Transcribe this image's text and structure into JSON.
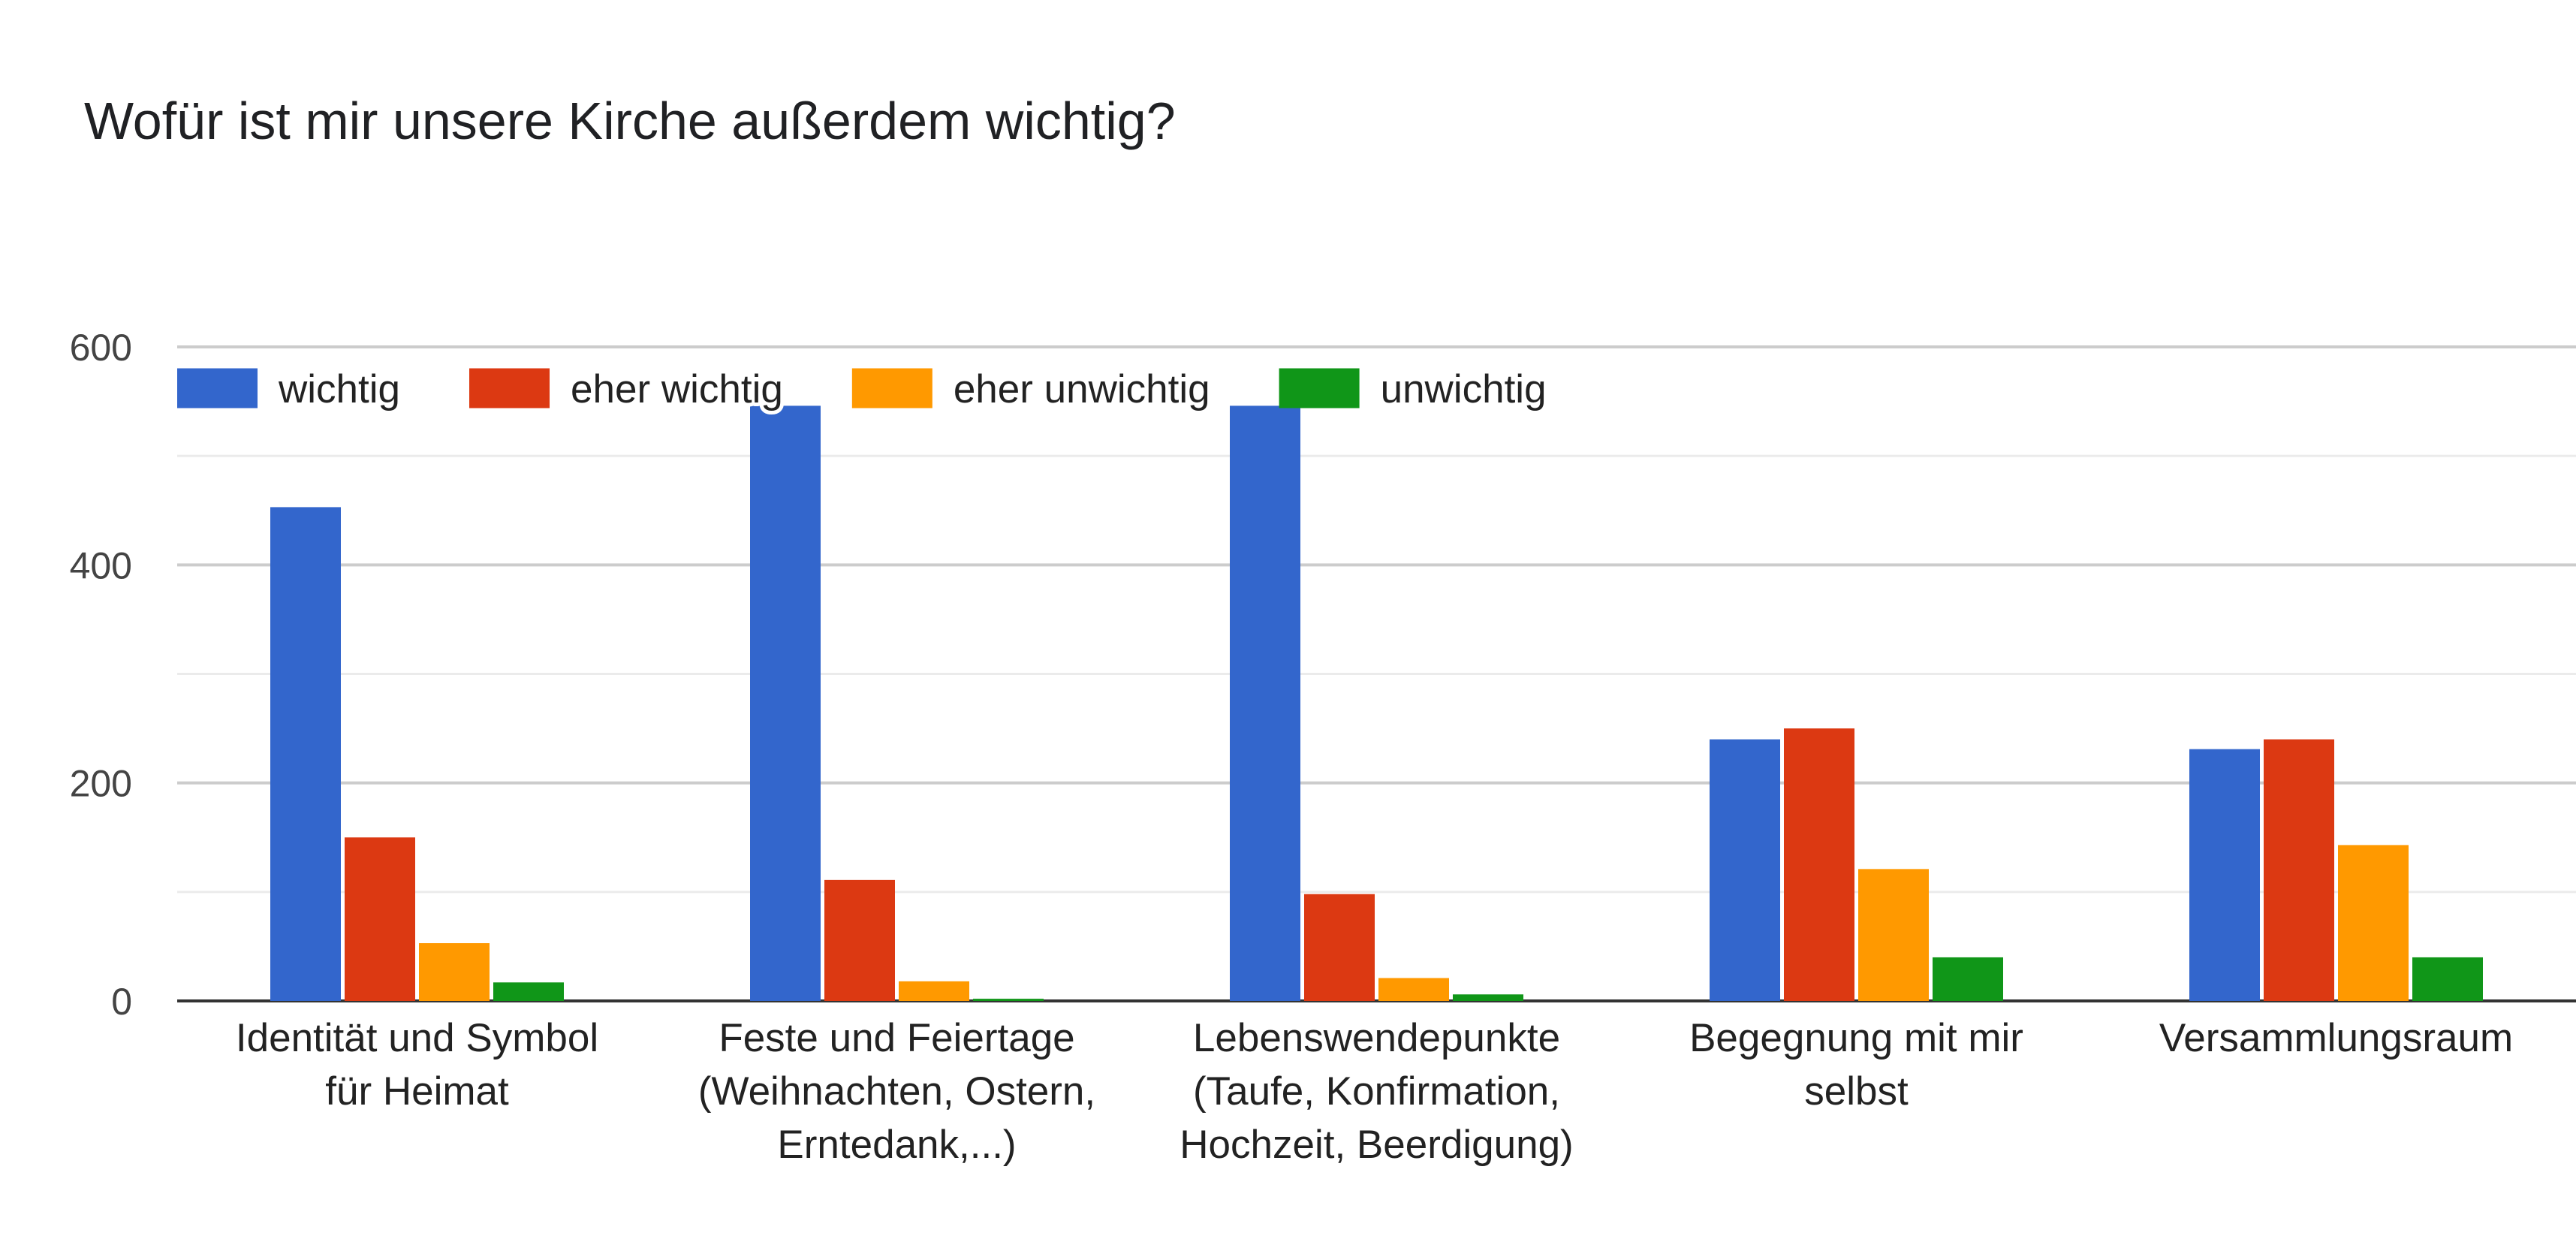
{
  "chart_data": {
    "type": "bar",
    "title": "Wofür ist mir unsere Kirche außerdem wichtig?",
    "categories": [
      [
        "Identität und Symbol",
        "für Heimat"
      ],
      [
        "Feste und Feiertage",
        "(Weihnachten, Ostern,",
        "Erntedank,...)"
      ],
      [
        "Lebenswendepunkte",
        "(Taufe, Konfirmation,",
        "Hochzeit, Beerdigung)"
      ],
      [
        "Begegnung mit mir",
        "selbst"
      ],
      [
        "Versammlungsraum"
      ]
    ],
    "series": [
      {
        "name": "wichtig",
        "color": "#3366cc",
        "values": [
          453,
          546,
          546,
          240,
          231
        ]
      },
      {
        "name": "eher wichtig",
        "color": "#dc3912",
        "values": [
          150,
          111,
          98,
          250,
          240
        ]
      },
      {
        "name": "eher unwichtig",
        "color": "#ff9900",
        "values": [
          53,
          18,
          21,
          121,
          143
        ]
      },
      {
        "name": "unwichtig",
        "color": "#109618",
        "values": [
          17,
          2,
          6,
          40,
          40
        ]
      }
    ],
    "ylim": [
      0,
      600
    ],
    "yticks": [
      0,
      200,
      400,
      600
    ],
    "grid": true,
    "legend_position": "top-left"
  }
}
